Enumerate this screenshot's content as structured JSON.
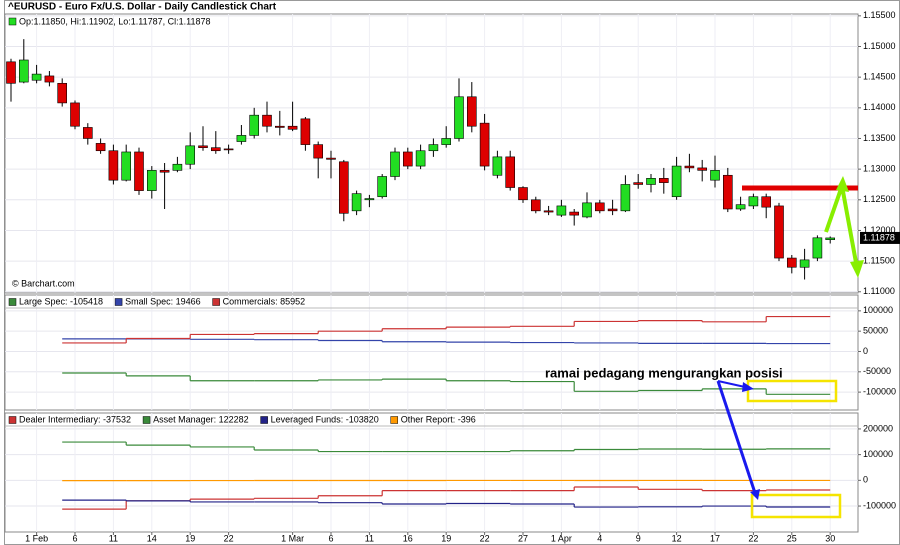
{
  "chart_data": [
    {
      "type": "candlestick",
      "title": "^EURUSD - Euro Fx/U.S. Dollar - Daily Candlestick Chart",
      "legend_text": "Op:1.11850, Hi:1.11902, Lo:1.11787, Cl:1.11878",
      "source": "© Barchart.com",
      "categories": [
        null,
        null,
        "1 Feb",
        null,
        null,
        "6",
        null,
        null,
        "11",
        null,
        null,
        "14",
        null,
        null,
        "19",
        null,
        null,
        "22",
        null,
        null,
        null,
        null,
        "1 Mar",
        null,
        null,
        "6",
        null,
        null,
        "11",
        null,
        null,
        "16",
        null,
        null,
        "19",
        null,
        null,
        "22",
        null,
        null,
        "27",
        null,
        null,
        "1 Apr",
        null,
        null,
        "4",
        null,
        null,
        "9",
        null,
        null,
        "12",
        null,
        null,
        "17",
        null,
        null,
        "22",
        null,
        null,
        "25",
        null,
        null,
        "30"
      ],
      "open": [
        1.1475,
        1.1442,
        1.1445,
        1.1452,
        1.144,
        1.1408,
        1.1368,
        1.1342,
        1.133,
        1.1282,
        1.1328,
        1.1265,
        1.1298,
        1.1298,
        1.1308,
        1.1338,
        1.1335,
        1.1333,
        1.1345,
        1.1355,
        1.1388,
        1.137,
        1.137,
        1.1382,
        1.134,
        1.1318,
        1.1312,
        1.1232,
        1.125,
        1.1255,
        1.1288,
        1.1328,
        1.1305,
        1.133,
        1.134,
        1.135,
        1.1418,
        1.1375,
        1.129,
        1.132,
        1.127,
        1.125,
        1.1232,
        1.1225,
        1.123,
        1.1222,
        1.1245,
        1.1235,
        1.1232,
        1.1278,
        1.1275,
        1.1285,
        1.1255,
        1.1305,
        1.1302,
        1.1282,
        1.129,
        1.1235,
        1.124,
        1.1255,
        1.124,
        1.1155,
        1.114,
        1.1155,
        1.1185
      ],
      "high": [
        1.148,
        1.1512,
        1.147,
        1.146,
        1.1448,
        1.1412,
        1.1375,
        1.135,
        1.134,
        1.134,
        1.1335,
        1.1305,
        1.131,
        1.132,
        1.136,
        1.137,
        1.1362,
        1.134,
        1.1372,
        1.14,
        1.141,
        1.1395,
        1.141,
        1.1385,
        1.1345,
        1.133,
        1.1315,
        1.1265,
        1.1258,
        1.1292,
        1.1335,
        1.1335,
        1.134,
        1.135,
        1.137,
        1.1448,
        1.1442,
        1.139,
        1.133,
        1.133,
        1.1272,
        1.1255,
        1.124,
        1.125,
        1.1235,
        1.1262,
        1.125,
        1.125,
        1.129,
        1.1292,
        1.1292,
        1.1302,
        1.132,
        1.1325,
        1.1315,
        1.1322,
        1.1302,
        1.1255,
        1.126,
        1.126,
        1.1245,
        1.116,
        1.117,
        1.1192,
        1.11902
      ],
      "low": [
        1.141,
        1.144,
        1.144,
        1.1435,
        1.1402,
        1.1365,
        1.134,
        1.1325,
        1.1275,
        1.128,
        1.1258,
        1.1252,
        1.1235,
        1.1295,
        1.13,
        1.133,
        1.1325,
        1.1325,
        1.134,
        1.135,
        1.136,
        1.1355,
        1.1362,
        1.133,
        1.1285,
        1.1285,
        1.1215,
        1.1225,
        1.1238,
        1.1252,
        1.1282,
        1.13,
        1.13,
        1.132,
        1.1335,
        1.1345,
        1.136,
        1.1298,
        1.1285,
        1.1265,
        1.1245,
        1.1228,
        1.1225,
        1.1222,
        1.1208,
        1.122,
        1.1228,
        1.1225,
        1.123,
        1.1268,
        1.1262,
        1.126,
        1.125,
        1.1295,
        1.128,
        1.127,
        1.123,
        1.1232,
        1.1235,
        1.122,
        1.115,
        1.113,
        1.112,
        1.115,
        1.11787
      ],
      "close": [
        1.144,
        1.1478,
        1.1455,
        1.1442,
        1.1408,
        1.137,
        1.135,
        1.133,
        1.1282,
        1.1328,
        1.1265,
        1.1298,
        1.1295,
        1.1308,
        1.1338,
        1.1335,
        1.133,
        1.1332,
        1.1355,
        1.1388,
        1.137,
        1.1368,
        1.1365,
        1.134,
        1.1318,
        1.1316,
        1.1228,
        1.126,
        1.1252,
        1.1288,
        1.1328,
        1.1305,
        1.133,
        1.134,
        1.135,
        1.1418,
        1.137,
        1.1305,
        1.132,
        1.127,
        1.125,
        1.1232,
        1.123,
        1.124,
        1.1225,
        1.1245,
        1.1232,
        1.1232,
        1.1275,
        1.1275,
        1.1285,
        1.1278,
        1.1305,
        1.1302,
        1.1298,
        1.1298,
        1.1235,
        1.1242,
        1.1255,
        1.1238,
        1.1155,
        1.114,
        1.1152,
        1.1188,
        1.11878
      ],
      "up_color": "#22dd22",
      "down_color": "#dd0000",
      "last_price": 1.11878,
      "ylim": [
        1.1098,
        1.1553
      ],
      "yticks": [
        {
          "value": 1.11,
          "label": "1.11000"
        },
        {
          "value": 1.115,
          "label": "1.11500"
        },
        {
          "value": 1.12,
          "label": "1.12000"
        },
        {
          "value": 1.125,
          "label": "1.12500"
        },
        {
          "value": 1.13,
          "label": "1.13000"
        },
        {
          "value": 1.135,
          "label": "1.13500"
        },
        {
          "value": 1.14,
          "label": "1.14000"
        },
        {
          "value": 1.145,
          "label": "1.14500"
        },
        {
          "value": 1.15,
          "label": "1.15000"
        },
        {
          "value": 1.155,
          "label": "1.15500"
        }
      ],
      "grid": true
    },
    {
      "type": "step",
      "annotation": "ramai pedagang mengurangkan posisi",
      "series": [
        {
          "name": "Large Spec: -105418",
          "color": "#3a8a3a",
          "values": [
            -53000,
            -60000,
            -72000,
            -72000,
            -70000,
            -68000,
            -72000,
            -74000,
            -98000,
            -96000,
            -92000,
            -105418
          ]
        },
        {
          "name": "Small Spec: 19466",
          "color": "#3344aa",
          "values": [
            31000,
            31000,
            30000,
            29000,
            27000,
            24000,
            23000,
            22000,
            21000,
            20000,
            20000,
            19466
          ]
        },
        {
          "name": "Commercials: 85952",
          "color": "#cc3333",
          "values": [
            21000,
            32000,
            42000,
            44000,
            50000,
            56000,
            60000,
            62000,
            74000,
            76000,
            73000,
            85952
          ]
        }
      ],
      "ylim": [
        -144000,
        139000
      ],
      "yticks": [
        -100000,
        -50000,
        0,
        50000,
        100000
      ],
      "grid": true
    },
    {
      "type": "step",
      "series": [
        {
          "name": "Dealer Intermediary: -37532",
          "color": "#cc3333",
          "values": [
            -112000,
            -80000,
            -73000,
            -70000,
            -60000,
            -40000,
            -40000,
            -40000,
            -26000,
            -35000,
            -40000,
            -37532
          ]
        },
        {
          "name": "Asset Manager: 122282",
          "color": "#3a8a3a",
          "values": [
            149000,
            137000,
            130000,
            118000,
            112000,
            112000,
            112000,
            115000,
            120000,
            122000,
            121000,
            122282
          ]
        },
        {
          "name": "Leveraged Funds: -103820",
          "color": "#222288",
          "values": [
            -77000,
            -80000,
            -84000,
            -84000,
            -87000,
            -92000,
            -90000,
            -92000,
            -104000,
            -103000,
            -100000,
            -103820
          ]
        },
        {
          "name": "Other Report: -396",
          "color": "#ff9900",
          "values": [
            -1000,
            -1200,
            -800,
            -600,
            -500,
            -700,
            -400,
            -300,
            -500,
            -400,
            -300,
            -396
          ]
        }
      ],
      "ylim": [
        -201000,
        262000
      ],
      "yticks": [
        -100000,
        0,
        100000,
        200000
      ],
      "grid": true
    }
  ]
}
